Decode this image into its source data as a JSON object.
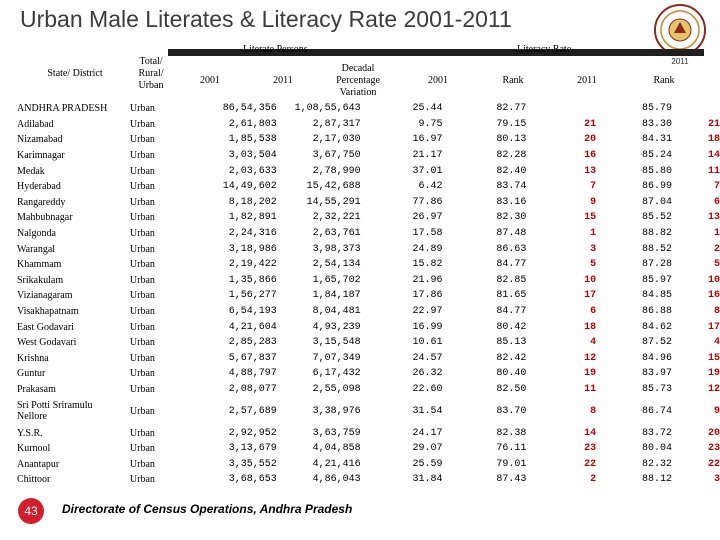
{
  "title": "Urban Male Literates & Literacy Rate 2001-2011",
  "seal": {
    "year": "2011"
  },
  "header": {
    "state_district": "State/ District",
    "area": "Total/ Rural/ Urban",
    "literate_persons": "Literate Persons",
    "literacy_rate": "Literacy Rate",
    "y2001": "2001",
    "y2011": "2011",
    "decadal": "Decadal Percentage Variation",
    "rate2001": "2001",
    "rank1": "Rank",
    "rate2011": "2011",
    "rank2": "Rank"
  },
  "rows": [
    {
      "name": "ANDHRA PRADESH",
      "area": "Urban",
      "p2001": "86,54,356",
      "p2011": "1,08,55,643",
      "var": "25.44",
      "r2001": "82.77",
      "rank1": "",
      "r2011": "85.79",
      "rank2": ""
    },
    {
      "name": "Adilabad",
      "area": "Urban",
      "p2001": "2,61,803",
      "p2011": "2,87,317",
      "var": "9.75",
      "r2001": "79.15",
      "rank1": "21",
      "r2011": "83.30",
      "rank2": "21"
    },
    {
      "name": "Nizamabad",
      "area": "Urban",
      "p2001": "1,85,538",
      "p2011": "2,17,030",
      "var": "16.97",
      "r2001": "80.13",
      "rank1": "20",
      "r2011": "84.31",
      "rank2": "18"
    },
    {
      "name": "Karimnagar",
      "area": "Urban",
      "p2001": "3,03,504",
      "p2011": "3,67,750",
      "var": "21.17",
      "r2001": "82.28",
      "rank1": "16",
      "r2011": "85.24",
      "rank2": "14"
    },
    {
      "name": "Medak",
      "area": "Urban",
      "p2001": "2,03,633",
      "p2011": "2,78,990",
      "var": "37.01",
      "r2001": "82.40",
      "rank1": "13",
      "r2011": "85.80",
      "rank2": "11"
    },
    {
      "name": "Hyderabad",
      "area": "Urban",
      "p2001": "14,49,602",
      "p2011": "15,42,688",
      "var": "6.42",
      "r2001": "83.74",
      "rank1": "7",
      "r2011": "86.99",
      "rank2": "7"
    },
    {
      "name": "Rangareddy",
      "area": "Urban",
      "p2001": "8,18,202",
      "p2011": "14,55,291",
      "var": "77.86",
      "r2001": "83.16",
      "rank1": "9",
      "r2011": "87.04",
      "rank2": "6"
    },
    {
      "name": "Mahbubnagar",
      "area": "Urban",
      "p2001": "1,82,891",
      "p2011": "2,32,221",
      "var": "26.97",
      "r2001": "82.30",
      "rank1": "15",
      "r2011": "85.52",
      "rank2": "13"
    },
    {
      "name": "Nalgonda",
      "area": "Urban",
      "p2001": "2,24,316",
      "p2011": "2,63,761",
      "var": "17.58",
      "r2001": "87.48",
      "rank1": "1",
      "r2011": "88.82",
      "rank2": "1"
    },
    {
      "name": "Warangal",
      "area": "Urban",
      "p2001": "3,18,986",
      "p2011": "3,98,373",
      "var": "24.89",
      "r2001": "86.63",
      "rank1": "3",
      "r2011": "88.52",
      "rank2": "2"
    },
    {
      "name": "Khammam",
      "area": "Urban",
      "p2001": "2,19,422",
      "p2011": "2,54,134",
      "var": "15.82",
      "r2001": "84.77",
      "rank1": "5",
      "r2011": "87.28",
      "rank2": "5"
    },
    {
      "name": "Srikakulam",
      "area": "Urban",
      "p2001": "1,35,866",
      "p2011": "1,65,702",
      "var": "21.96",
      "r2001": "82.85",
      "rank1": "10",
      "r2011": "85.97",
      "rank2": "10"
    },
    {
      "name": "Vizianagaram",
      "area": "Urban",
      "p2001": "1,56,277",
      "p2011": "1,84,187",
      "var": "17.86",
      "r2001": "81.65",
      "rank1": "17",
      "r2011": "84.85",
      "rank2": "16"
    },
    {
      "name": "Visakhapatnam",
      "area": "Urban",
      "p2001": "6,54,193",
      "p2011": "8,04,481",
      "var": "22.97",
      "r2001": "84.77",
      "rank1": "6",
      "r2011": "86.88",
      "rank2": "8"
    },
    {
      "name": "East Godavari",
      "area": "Urban",
      "p2001": "4,21,604",
      "p2011": "4,93,239",
      "var": "16.99",
      "r2001": "80.42",
      "rank1": "18",
      "r2011": "84.62",
      "rank2": "17"
    },
    {
      "name": "West Godavari",
      "area": "Urban",
      "p2001": "2,85,283",
      "p2011": "3,15,548",
      "var": "10.61",
      "r2001": "85.13",
      "rank1": "4",
      "r2011": "87.52",
      "rank2": "4"
    },
    {
      "name": "Krishna",
      "area": "Urban",
      "p2001": "5,67,837",
      "p2011": "7,07,349",
      "var": "24.57",
      "r2001": "82.42",
      "rank1": "12",
      "r2011": "84.96",
      "rank2": "15"
    },
    {
      "name": "Guntur",
      "area": "Urban",
      "p2001": "4,88,797",
      "p2011": "6,17,432",
      "var": "26.32",
      "r2001": "80.40",
      "rank1": "19",
      "r2011": "83.97",
      "rank2": "19"
    },
    {
      "name": "Prakasam",
      "area": "Urban",
      "p2001": "2,08,077",
      "p2011": "2,55,098",
      "var": "22.60",
      "r2001": "82.50",
      "rank1": "11",
      "r2011": "85.73",
      "rank2": "12"
    },
    {
      "name": "Sri Potti Sriramulu Nellore",
      "name1": "Sri Potti Sriramulu",
      "name2": "Nellore",
      "area": "Urban",
      "p2001": "2,57,689",
      "p2011": "3,38,976",
      "var": "31.54",
      "r2001": "83.70",
      "rank1": "8",
      "r2011": "86.74",
      "rank2": "9"
    },
    {
      "name": "Y.S.R.",
      "area": "Urban",
      "p2001": "2,92,952",
      "p2011": "3,63,759",
      "var": "24.17",
      "r2001": "82.38",
      "rank1": "14",
      "r2011": "83.72",
      "rank2": "20"
    },
    {
      "name": "Kurnool",
      "area": "Urban",
      "p2001": "3,13,679",
      "p2011": "4,04,858",
      "var": "29.07",
      "r2001": "76.11",
      "rank1": "23",
      "r2011": "80.04",
      "rank2": "23"
    },
    {
      "name": "Anantapur",
      "area": "Urban",
      "p2001": "3,35,552",
      "p2011": "4,21,416",
      "var": "25.59",
      "r2001": "79.01",
      "rank1": "22",
      "r2011": "82.32",
      "rank2": "22"
    },
    {
      "name": "Chittoor",
      "area": "Urban",
      "p2001": "3,68,653",
      "p2011": "4,86,043",
      "var": "31.84",
      "r2001": "87.43",
      "rank1": "2",
      "r2011": "88.12",
      "rank2": "3"
    }
  ],
  "footer": {
    "page_number": "43",
    "source": "Directorate of Census Operations, Andhra Pradesh"
  },
  "colors": {
    "rank": "#c00000",
    "page_badge": "#d21f2b",
    "title": "#3c3c3c"
  }
}
